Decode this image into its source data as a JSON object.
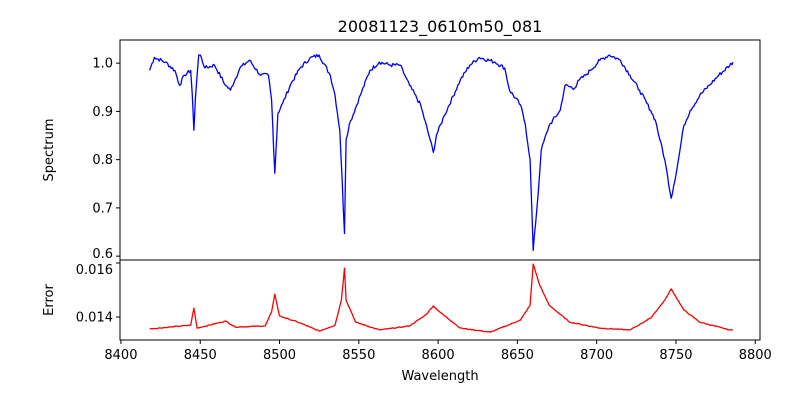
{
  "chart_data": [
    {
      "type": "line",
      "title": "20081123_0610m50_081",
      "xlabel": "",
      "ylabel": "Spectrum",
      "xlim": [
        8399.4,
        8803
      ],
      "ylim": [
        0.592,
        1.048
      ],
      "xticks": [
        8400,
        8450,
        8500,
        8550,
        8600,
        8650,
        8700,
        8750,
        8800
      ],
      "yticks": [
        0.6,
        0.7,
        0.8,
        0.9,
        1.0
      ],
      "ytick_labels": [
        "0.6",
        "0.7",
        "0.8",
        "0.9",
        "1.0"
      ],
      "color": "#0000ff",
      "x": [
        8418,
        8421,
        8428,
        8434,
        8437,
        8440,
        8444,
        8445,
        8446,
        8447,
        8449,
        8450,
        8453,
        8459,
        8466,
        8469,
        8475,
        8481,
        8488,
        8493,
        8495,
        8497,
        8499,
        8502,
        8507,
        8513,
        8519,
        8525,
        8532,
        8535,
        8538,
        8541,
        8542,
        8544,
        8551,
        8557,
        8563,
        8570,
        8576,
        8579,
        8582,
        8589,
        8595,
        8597,
        8599,
        8604,
        8614,
        8620,
        8626,
        8636,
        8642,
        8645,
        8652,
        8655,
        8658,
        8660,
        8663,
        8665,
        8670,
        8677,
        8680,
        8686,
        8689,
        8693,
        8696,
        8702,
        8708,
        8715,
        8721,
        8727,
        8734,
        8737,
        8740,
        8743,
        8747,
        8751,
        8755,
        8759,
        8765,
        8771,
        8777,
        8784,
        8786
      ],
      "y": [
        0.985,
        1.012,
        1.002,
        0.985,
        0.954,
        0.975,
        0.985,
        0.934,
        0.861,
        0.93,
        1.017,
        1.017,
        0.99,
        0.996,
        0.954,
        0.944,
        0.99,
        1.006,
        0.975,
        0.975,
        0.923,
        0.772,
        0.896,
        0.917,
        0.956,
        0.99,
        1.01,
        1.017,
        0.975,
        0.934,
        0.861,
        0.647,
        0.842,
        0.873,
        0.934,
        0.985,
        1.002,
        0.996,
        0.996,
        0.975,
        0.954,
        0.913,
        0.841,
        0.815,
        0.851,
        0.892,
        0.965,
        0.996,
        1.012,
        1.002,
        0.99,
        0.944,
        0.913,
        0.873,
        0.8,
        0.612,
        0.726,
        0.819,
        0.871,
        0.902,
        0.954,
        0.948,
        0.965,
        0.975,
        0.985,
        1.006,
        1.017,
        1.006,
        0.975,
        0.944,
        0.902,
        0.882,
        0.84,
        0.799,
        0.72,
        0.788,
        0.871,
        0.902,
        0.933,
        0.954,
        0.975,
        0.996,
        1.002
      ]
    },
    {
      "type": "line",
      "title": "",
      "xlabel": "Wavelength",
      "ylabel": "Error",
      "xlim": [
        8399.4,
        8803
      ],
      "ylim": [
        0.01315,
        0.01611
      ],
      "xticks": [
        8400,
        8450,
        8500,
        8550,
        8600,
        8650,
        8700,
        8750,
        8800
      ],
      "xtick_labels": [
        "8400",
        "8450",
        "8500",
        "8550",
        "8600",
        "8650",
        "8700",
        "8750",
        "8800"
      ],
      "yticks": [
        0.014,
        0.016
      ],
      "ytick_labels": [
        "0.014",
        "0.016"
      ],
      "color": "#ff0000",
      "x": [
        8418,
        8444,
        8446,
        8448,
        8466,
        8472,
        8491,
        8495,
        8497,
        8500,
        8513,
        8525,
        8535,
        8539,
        8541,
        8542,
        8548,
        8563,
        8582,
        8592,
        8597,
        8601,
        8614,
        8633,
        8652,
        8658,
        8660,
        8664,
        8670,
        8683,
        8702,
        8721,
        8734,
        8743,
        8747,
        8755,
        8765,
        8784,
        8786
      ],
      "y": [
        0.01356,
        0.0137,
        0.01433,
        0.01359,
        0.01385,
        0.01363,
        0.01367,
        0.01419,
        0.01485,
        0.01404,
        0.01378,
        0.01348,
        0.0137,
        0.01463,
        0.01581,
        0.01463,
        0.01381,
        0.01352,
        0.01367,
        0.01407,
        0.01441,
        0.01419,
        0.01359,
        0.01344,
        0.01389,
        0.01444,
        0.01596,
        0.01519,
        0.01444,
        0.01381,
        0.01359,
        0.01352,
        0.01396,
        0.01463,
        0.01504,
        0.01426,
        0.01381,
        0.01352,
        0.01352
      ]
    }
  ]
}
